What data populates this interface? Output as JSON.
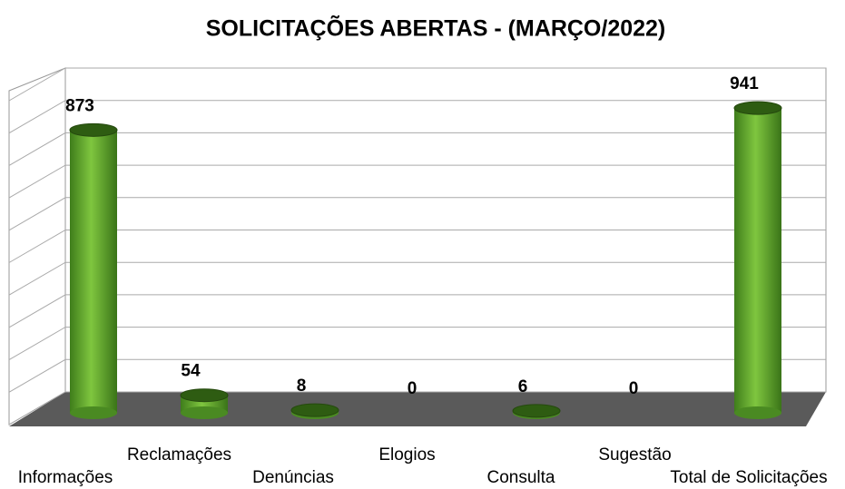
{
  "chart_data": {
    "type": "bar",
    "title": "SOLICITAÇÕES ABERTAS - (MARÇO/2022)",
    "categories": [
      "Informações",
      "Reclamações",
      "Denúncias",
      "Elogios",
      "Consulta",
      "Sugestão",
      "Total de Solicitações"
    ],
    "values": [
      873,
      54,
      8,
      0,
      6,
      0,
      941
    ],
    "color": "#5fa52c",
    "ylim": [
      0,
      1000
    ],
    "yticks": [
      0,
      100,
      200,
      300,
      400,
      500,
      600,
      700,
      800,
      900,
      1000
    ],
    "grid": true
  }
}
